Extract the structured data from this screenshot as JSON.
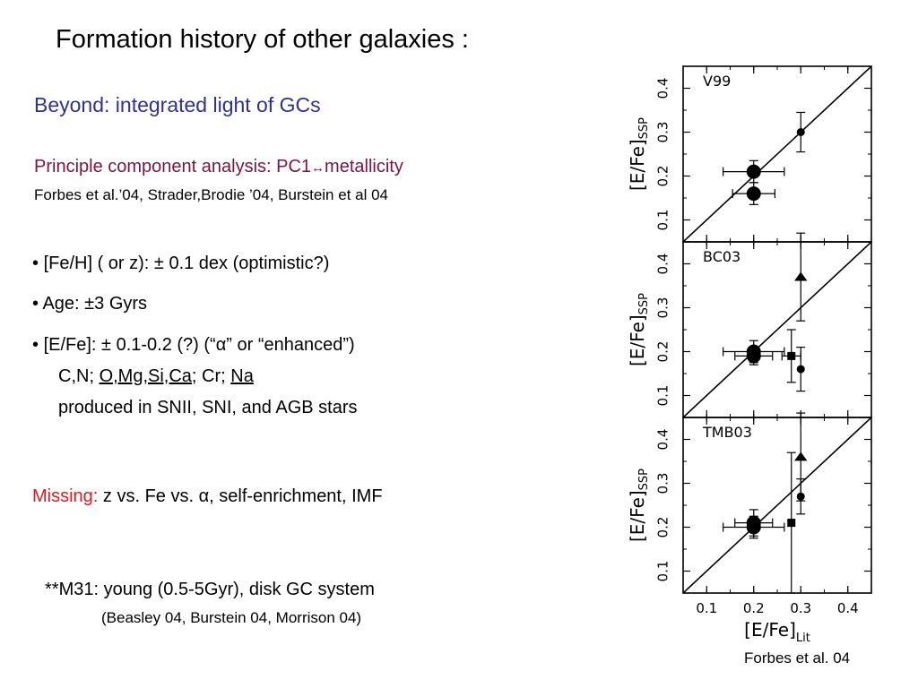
{
  "slide": {
    "title": "Formation history of other galaxies :",
    "subtitle": "Beyond: integrated light of GCs",
    "pca_line_prefix": "Principle component analysis:  PC1",
    "pca_arrow": "↔",
    "pca_line_suffix": "metallicity",
    "references": "Forbes et al.’04, Strader,Brodie ’04, Burstein et al 04",
    "bullet_marker": "•",
    "bullet1": "[Fe/H] ( or z): ± 0.1 dex    (optimistic?)",
    "bullet2": "Age:  ±3 Gyrs",
    "bullet3": "[E/Fe]: ± 0.1-0.2 (?)    (“α” or “enhanced”)",
    "elements_prefix": "C,N; ",
    "elements_u1": "O,Mg,Si,Ca",
    "elements_mid": "; Cr; ",
    "elements_u2": "Na",
    "produced": "produced in SNII, SNI, and AGB stars",
    "missing_label": "Missing:",
    "missing_text": " z vs. Fe vs. α, self-enrichment, IMF",
    "m31": "**M31:  young (0.5-5Gyr), disk GC system",
    "m31_refs": "(Beasley 04, Burstein 04, Morrison 04)",
    "credit": "Forbes et al. 04"
  },
  "chart_data": [
    {
      "type": "scatter",
      "panel_label": "V99",
      "xlabel": "[E/Fe]Lit",
      "ylabel": "[E/Fe]SSP",
      "xlim": [
        0.05,
        0.45
      ],
      "ylim": [
        0.05,
        0.45
      ],
      "yticks": [
        0.1,
        0.2,
        0.3,
        0.4
      ],
      "xticks": [
        0.1,
        0.2,
        0.3,
        0.4
      ],
      "one_to_one_line": true,
      "points": [
        {
          "x": 0.2,
          "y": 0.21,
          "marker": "circle",
          "size": "large",
          "xerr": 0.065,
          "yerr": 0.025
        },
        {
          "x": 0.2,
          "y": 0.16,
          "marker": "circle",
          "size": "large",
          "xerr": 0.045,
          "yerr": 0.025
        },
        {
          "x": 0.3,
          "y": 0.3,
          "marker": "circle",
          "size": "small",
          "xerr": 0.0,
          "yerr": 0.045
        }
      ]
    },
    {
      "type": "scatter",
      "panel_label": "BC03",
      "xlabel": "[E/Fe]Lit",
      "ylabel": "[E/Fe]SSP",
      "xlim": [
        0.05,
        0.45
      ],
      "ylim": [
        0.05,
        0.45
      ],
      "yticks": [
        0.1,
        0.2,
        0.3,
        0.4
      ],
      "xticks": [
        0.1,
        0.2,
        0.3,
        0.4
      ],
      "one_to_one_line": true,
      "points": [
        {
          "x": 0.2,
          "y": 0.2,
          "marker": "circle",
          "size": "large",
          "xerr": 0.065,
          "yerr": 0.025
        },
        {
          "x": 0.2,
          "y": 0.19,
          "marker": "circle",
          "size": "large",
          "xerr": 0.04,
          "yerr": 0.02
        },
        {
          "x": 0.3,
          "y": 0.37,
          "marker": "triangle",
          "size": "medium",
          "xerr": 0.0,
          "yerr": 0.1
        },
        {
          "x": 0.28,
          "y": 0.19,
          "marker": "square",
          "size": "small",
          "xerr": 0.02,
          "yerr": 0.06
        },
        {
          "x": 0.3,
          "y": 0.16,
          "marker": "circle",
          "size": "small",
          "xerr": 0.0,
          "yerr": 0.05
        }
      ]
    },
    {
      "type": "scatter",
      "panel_label": "TMB03",
      "xlabel": "[E/Fe]Lit",
      "ylabel": "[E/Fe]SSP",
      "xlim": [
        0.05,
        0.45
      ],
      "ylim": [
        0.05,
        0.45
      ],
      "yticks": [
        0.1,
        0.2,
        0.3,
        0.4
      ],
      "xticks": [
        0.1,
        0.2,
        0.3,
        0.4
      ],
      "one_to_one_line": true,
      "points": [
        {
          "x": 0.2,
          "y": 0.2,
          "marker": "circle",
          "size": "large",
          "xerr": 0.065,
          "yerr": 0.025
        },
        {
          "x": 0.2,
          "y": 0.21,
          "marker": "circle",
          "size": "large",
          "xerr": 0.04,
          "yerr": 0.03
        },
        {
          "x": 0.3,
          "y": 0.36,
          "marker": "triangle",
          "size": "medium",
          "xerr": 0.0,
          "yerr": 0.1
        },
        {
          "x": 0.3,
          "y": 0.27,
          "marker": "circle",
          "size": "small",
          "xerr": 0.0,
          "yerr": 0.04
        },
        {
          "x": 0.28,
          "y": 0.21,
          "marker": "square",
          "size": "small",
          "xerr": 0.0,
          "yerr": 0.16
        }
      ]
    }
  ]
}
